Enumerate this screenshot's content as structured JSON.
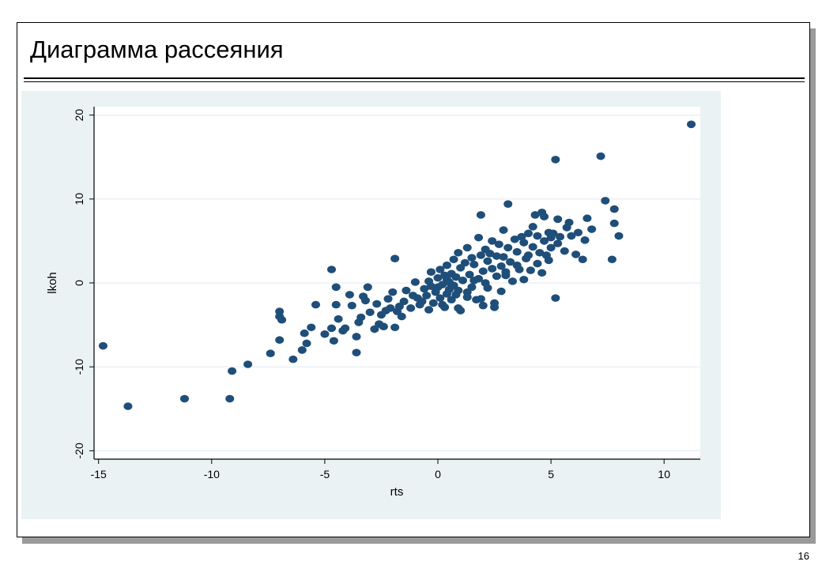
{
  "slide": {
    "title": "Диаграмма рассеяния",
    "page_number": "16"
  },
  "colors": {
    "marker": "#1f4e79",
    "plot_bg": "#ffffff",
    "outer_bg": "#eaf2f3",
    "grid": "#e6eef0"
  },
  "chart_data": {
    "type": "scatter",
    "title": "",
    "xlabel": "rts",
    "ylabel": "lkoh",
    "xlim": [
      -15.2,
      11.6
    ],
    "ylim": [
      -21,
      21
    ],
    "xticks": [
      -15,
      -10,
      -5,
      0,
      5,
      10
    ],
    "yticks": [
      -20,
      -10,
      0,
      10,
      20
    ],
    "xtick_labels": [
      "-15",
      "-10",
      "-5",
      "0",
      "5",
      "10"
    ],
    "ytick_labels": [
      "-20",
      "-10",
      "0",
      "10",
      "20"
    ],
    "grid": true,
    "points": [
      [
        -14.8,
        -7.5
      ],
      [
        -13.7,
        -14.7
      ],
      [
        -11.2,
        -13.8
      ],
      [
        -9.2,
        -13.8
      ],
      [
        -9.1,
        -10.5
      ],
      [
        -8.4,
        -9.7
      ],
      [
        -7.4,
        -8.4
      ],
      [
        -7.0,
        -3.4
      ],
      [
        -7.0,
        -4.0
      ],
      [
        -6.9,
        -4.4
      ],
      [
        -7.0,
        -6.8
      ],
      [
        -6.4,
        -9.1
      ],
      [
        -6.0,
        -8.0
      ],
      [
        -5.8,
        -7.2
      ],
      [
        -5.9,
        -6.0
      ],
      [
        -5.6,
        -5.3
      ],
      [
        -5.4,
        -2.6
      ],
      [
        -5.0,
        -6.1
      ],
      [
        -4.7,
        1.6
      ],
      [
        -4.7,
        -5.4
      ],
      [
        -4.6,
        -6.9
      ],
      [
        -4.5,
        -2.6
      ],
      [
        -4.5,
        -0.5
      ],
      [
        -4.4,
        -4.3
      ],
      [
        -4.2,
        -5.7
      ],
      [
        -4.1,
        -5.4
      ],
      [
        -3.9,
        -1.4
      ],
      [
        -3.8,
        -2.7
      ],
      [
        -3.6,
        -6.4
      ],
      [
        -3.6,
        -8.3
      ],
      [
        -3.4,
        -4.1
      ],
      [
        -3.3,
        -1.6
      ],
      [
        -3.2,
        -2.1
      ],
      [
        -3.1,
        -0.5
      ],
      [
        -3.0,
        -3.5
      ],
      [
        -2.8,
        -5.5
      ],
      [
        -2.7,
        -2.5
      ],
      [
        -2.6,
        -4.9
      ],
      [
        -2.5,
        -3.8
      ],
      [
        -2.4,
        -5.2
      ],
      [
        -2.2,
        -1.9
      ],
      [
        -2.1,
        -3.0
      ],
      [
        -2.0,
        -1.1
      ],
      [
        -1.9,
        -5.3
      ],
      [
        -1.8,
        -3.4
      ],
      [
        -1.7,
        -2.8
      ],
      [
        -1.6,
        -4.0
      ],
      [
        -1.5,
        -2.2
      ],
      [
        -1.4,
        -0.9
      ],
      [
        -1.2,
        -3.0
      ],
      [
        -1.1,
        -1.5
      ],
      [
        -1.9,
        2.9
      ],
      [
        -0.9,
        -1.8
      ],
      [
        -0.7,
        -2.2
      ],
      [
        -0.6,
        -0.7
      ],
      [
        -0.5,
        -1.5
      ],
      [
        -0.4,
        0.2
      ],
      [
        -0.3,
        -0.4
      ],
      [
        -0.3,
        1.3
      ],
      [
        -0.2,
        -2.4
      ],
      [
        -0.1,
        -1.1
      ],
      [
        0.0,
        -0.5
      ],
      [
        0.0,
        0.6
      ],
      [
        0.1,
        -1.8
      ],
      [
        0.1,
        1.6
      ],
      [
        0.2,
        -0.2
      ],
      [
        0.3,
        -2.9
      ],
      [
        0.3,
        0.9
      ],
      [
        0.4,
        -1.3
      ],
      [
        0.4,
        2.1
      ],
      [
        0.5,
        0.1
      ],
      [
        0.5,
        -0.8
      ],
      [
        0.6,
        1.1
      ],
      [
        0.6,
        -2.0
      ],
      [
        0.7,
        -0.3
      ],
      [
        0.7,
        2.8
      ],
      [
        0.8,
        0.7
      ],
      [
        0.8,
        -1.4
      ],
      [
        0.9,
        3.6
      ],
      [
        0.9,
        -0.9
      ],
      [
        1.0,
        1.8
      ],
      [
        1.0,
        -3.3
      ],
      [
        1.1,
        0.3
      ],
      [
        1.2,
        2.4
      ],
      [
        1.3,
        -1.7
      ],
      [
        1.3,
        4.2
      ],
      [
        1.4,
        1.0
      ],
      [
        1.5,
        3.0
      ],
      [
        1.5,
        -0.5
      ],
      [
        1.6,
        2.2
      ],
      [
        1.7,
        -2.0
      ],
      [
        1.8,
        5.4
      ],
      [
        1.8,
        0.5
      ],
      [
        1.9,
        8.1
      ],
      [
        1.9,
        3.3
      ],
      [
        2.0,
        1.4
      ],
      [
        2.0,
        -2.7
      ],
      [
        2.1,
        4.0
      ],
      [
        2.2,
        2.6
      ],
      [
        2.2,
        -0.6
      ],
      [
        2.3,
        3.5
      ],
      [
        2.4,
        5.0
      ],
      [
        2.4,
        1.7
      ],
      [
        2.5,
        -2.4
      ],
      [
        2.6,
        3.2
      ],
      [
        2.6,
        0.8
      ],
      [
        2.7,
        4.6
      ],
      [
        2.8,
        2.0
      ],
      [
        2.8,
        -1.0
      ],
      [
        2.9,
        6.3
      ],
      [
        2.9,
        3.1
      ],
      [
        3.0,
        1.3
      ],
      [
        3.1,
        9.4
      ],
      [
        3.1,
        4.2
      ],
      [
        3.2,
        2.5
      ],
      [
        3.3,
        0.2
      ],
      [
        3.4,
        5.2
      ],
      [
        3.5,
        3.7
      ],
      [
        3.6,
        1.6
      ],
      [
        3.7,
        5.5
      ],
      [
        3.8,
        0.4
      ],
      [
        3.8,
        4.8
      ],
      [
        3.9,
        2.9
      ],
      [
        4.0,
        5.9
      ],
      [
        4.0,
        3.3
      ],
      [
        4.1,
        1.5
      ],
      [
        4.2,
        6.7
      ],
      [
        4.2,
        4.3
      ],
      [
        4.3,
        8.1
      ],
      [
        4.4,
        2.3
      ],
      [
        4.4,
        5.6
      ],
      [
        4.5,
        3.6
      ],
      [
        4.6,
        8.4
      ],
      [
        4.6,
        1.2
      ],
      [
        4.7,
        7.9
      ],
      [
        4.7,
        5.0
      ],
      [
        4.8,
        3.3
      ],
      [
        4.9,
        6.0
      ],
      [
        4.9,
        2.7
      ],
      [
        5.0,
        5.4
      ],
      [
        5.0,
        4.2
      ],
      [
        5.1,
        5.9
      ],
      [
        5.2,
        14.7
      ],
      [
        5.2,
        -1.8
      ],
      [
        5.3,
        7.6
      ],
      [
        5.3,
        4.7
      ],
      [
        5.4,
        5.5
      ],
      [
        5.6,
        3.8
      ],
      [
        5.7,
        6.6
      ],
      [
        5.8,
        7.2
      ],
      [
        5.9,
        5.6
      ],
      [
        6.1,
        3.4
      ],
      [
        6.2,
        6.0
      ],
      [
        6.4,
        2.8
      ],
      [
        6.5,
        5.1
      ],
      [
        6.6,
        7.7
      ],
      [
        6.8,
        6.4
      ],
      [
        7.2,
        15.1
      ],
      [
        7.4,
        9.8
      ],
      [
        7.7,
        2.8
      ],
      [
        7.8,
        8.8
      ],
      [
        7.8,
        7.1
      ],
      [
        8.0,
        5.6
      ],
      [
        11.2,
        18.9
      ],
      [
        0.2,
        -2.6
      ],
      [
        -0.4,
        -3.2
      ],
      [
        0.9,
        -3.0
      ],
      [
        1.3,
        -1.1
      ],
      [
        -1.0,
        0.1
      ],
      [
        -0.8,
        -2.6
      ],
      [
        0.4,
        0.4
      ],
      [
        0.6,
        -0.4
      ],
      [
        1.9,
        -1.9
      ],
      [
        2.5,
        -2.9
      ],
      [
        3.0,
        0.9
      ],
      [
        3.5,
        2.1
      ],
      [
        2.1,
        0.0
      ],
      [
        1.6,
        0.3
      ],
      [
        -2.3,
        -3.3
      ],
      [
        -3.5,
        -4.7
      ]
    ]
  }
}
